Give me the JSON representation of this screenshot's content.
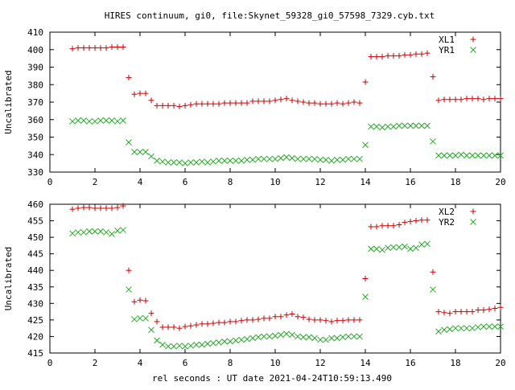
{
  "title": "HIRES continuum, gi0, file:Skynet_59328_gi0_57598_7329.cyb.txt",
  "xlabel": "rel seconds : UT date 2021-04-24T10:59:13.490",
  "colors": {
    "series_a": "#cc0000",
    "series_b": "#22aa22",
    "frame": "#000000"
  },
  "chart_data": [
    {
      "type": "scatter",
      "ylabel": "Uncalibrated",
      "xlim": [
        0,
        20
      ],
      "ylim": [
        330,
        410
      ],
      "xticks": [
        "0",
        "2",
        "4",
        "6",
        "8",
        "10",
        "12",
        "14",
        "16",
        "18",
        "20"
      ],
      "yticks": [
        "330",
        "340",
        "350",
        "360",
        "370",
        "380",
        "390",
        "400",
        "410"
      ],
      "legend_position": "top-right",
      "grid": false,
      "series": [
        {
          "name": "XL1",
          "marker": "plus",
          "x": [
            1.0,
            1.25,
            1.5,
            1.75,
            2.0,
            2.25,
            2.5,
            2.75,
            3.0,
            3.25,
            3.5,
            3.75,
            4.0,
            4.25,
            4.5,
            4.75,
            5.0,
            5.25,
            5.5,
            5.75,
            6.0,
            6.25,
            6.5,
            6.75,
            7.0,
            7.25,
            7.5,
            7.75,
            8.0,
            8.25,
            8.5,
            8.75,
            9.0,
            9.25,
            9.5,
            9.75,
            10.0,
            10.25,
            10.5,
            10.75,
            11.0,
            11.25,
            11.5,
            11.75,
            12.0,
            12.25,
            12.5,
            12.75,
            13.0,
            13.25,
            13.5,
            13.75,
            14.0,
            14.25,
            14.5,
            14.75,
            15.0,
            15.25,
            15.5,
            15.75,
            16.0,
            16.25,
            16.5,
            16.75,
            17.0,
            17.25,
            17.5,
            17.75,
            18.0,
            18.25,
            18.5,
            18.75,
            19.0,
            19.25,
            19.5,
            19.75,
            20.0
          ],
          "y": [
            400.5,
            401,
            401,
            401,
            401,
            401,
            401,
            401.5,
            401.5,
            401.5,
            384,
            374.5,
            375,
            375,
            371,
            368,
            368,
            368,
            368,
            367.5,
            368,
            368.5,
            369,
            369,
            369,
            369,
            369,
            369.5,
            369.5,
            369.5,
            369.5,
            369.5,
            370.5,
            370.5,
            370.5,
            370.5,
            371,
            371.5,
            372,
            371,
            370.5,
            370,
            369.5,
            369.5,
            369,
            369,
            369,
            369.5,
            369,
            369.5,
            370,
            369.5,
            381.5,
            396,
            396,
            396,
            396.5,
            396.5,
            396.5,
            397,
            397,
            397.5,
            397.5,
            398,
            384.5,
            371,
            371.5,
            371.5,
            371.5,
            371.5,
            372,
            372,
            372,
            371.5,
            372,
            372,
            372
          ]
        },
        {
          "name": "YR1",
          "marker": "cross",
          "x": [
            1.0,
            1.25,
            1.5,
            1.75,
            2.0,
            2.25,
            2.5,
            2.75,
            3.0,
            3.25,
            3.5,
            3.75,
            4.0,
            4.25,
            4.5,
            4.75,
            5.0,
            5.25,
            5.5,
            5.75,
            6.0,
            6.25,
            6.5,
            6.75,
            7.0,
            7.25,
            7.5,
            7.75,
            8.0,
            8.25,
            8.5,
            8.75,
            9.0,
            9.25,
            9.5,
            9.75,
            10.0,
            10.25,
            10.5,
            10.75,
            11.0,
            11.25,
            11.5,
            11.75,
            12.0,
            12.25,
            12.5,
            12.75,
            13.0,
            13.25,
            13.5,
            13.75,
            14.0,
            14.25,
            14.5,
            14.75,
            15.0,
            15.25,
            15.5,
            15.75,
            16.0,
            16.25,
            16.5,
            16.75,
            17.0,
            17.25,
            17.5,
            17.75,
            18.0,
            18.25,
            18.5,
            18.75,
            19.0,
            19.25,
            19.5,
            19.75,
            20.0
          ],
          "y": [
            359,
            359.5,
            359.5,
            359,
            359,
            359.5,
            359.5,
            359.5,
            359,
            359.5,
            347,
            341.5,
            341.5,
            341.5,
            339,
            336.5,
            336,
            335.5,
            335.5,
            335.5,
            335,
            335.5,
            335.5,
            336,
            335.5,
            336,
            336.5,
            336.5,
            336.5,
            336.5,
            336.5,
            337,
            337,
            337.5,
            337.5,
            337.5,
            337.5,
            338,
            338.5,
            338,
            337.5,
            337.5,
            337.5,
            337.5,
            337,
            337,
            336.5,
            337,
            337,
            337.5,
            337.5,
            337.5,
            345.5,
            356,
            356,
            355.5,
            356,
            356,
            356.5,
            356.5,
            356.5,
            356.5,
            356.5,
            356.5,
            347.5,
            339.5,
            339.5,
            339.5,
            339.5,
            340,
            339.5,
            339.5,
            339.5,
            339.5,
            339.5,
            339.5,
            339.5
          ]
        }
      ]
    },
    {
      "type": "scatter",
      "ylabel": "Uncalibrated",
      "xlim": [
        0,
        20
      ],
      "ylim": [
        415,
        460
      ],
      "xticks": [
        "0",
        "2",
        "4",
        "6",
        "8",
        "10",
        "12",
        "14",
        "16",
        "18",
        "20"
      ],
      "yticks": [
        "415",
        "420",
        "425",
        "430",
        "435",
        "440",
        "445",
        "450",
        "455",
        "460"
      ],
      "legend_position": "top-right",
      "grid": false,
      "series": [
        {
          "name": "XL2",
          "marker": "plus",
          "x": [
            1.0,
            1.25,
            1.5,
            1.75,
            2.0,
            2.25,
            2.5,
            2.75,
            3.0,
            3.25,
            3.5,
            3.75,
            4.0,
            4.25,
            4.5,
            4.75,
            5.0,
            5.25,
            5.5,
            5.75,
            6.0,
            6.25,
            6.5,
            6.75,
            7.0,
            7.25,
            7.5,
            7.75,
            8.0,
            8.25,
            8.5,
            8.75,
            9.0,
            9.25,
            9.5,
            9.75,
            10.0,
            10.25,
            10.5,
            10.75,
            11.0,
            11.25,
            11.5,
            11.75,
            12.0,
            12.25,
            12.5,
            12.75,
            13.0,
            13.25,
            13.5,
            13.75,
            14.0,
            14.25,
            14.5,
            14.75,
            15.0,
            15.25,
            15.5,
            15.75,
            16.0,
            16.25,
            16.5,
            16.75,
            17.0,
            17.25,
            17.5,
            17.75,
            18.0,
            18.25,
            18.5,
            18.75,
            19.0,
            19.25,
            19.5,
            19.75,
            20.0
          ],
          "y": [
            458.5,
            458.8,
            459,
            459,
            458.8,
            458.8,
            458.8,
            458.8,
            459,
            459.5,
            440,
            430.5,
            431,
            430.8,
            427,
            424.5,
            422.8,
            422.8,
            422.8,
            422.5,
            423,
            423.2,
            423.5,
            423.8,
            423.8,
            424,
            424.2,
            424.2,
            424.5,
            424.5,
            424.8,
            425,
            425,
            425.2,
            425.5,
            425.5,
            426,
            426,
            426.5,
            426.8,
            426,
            425.8,
            425.2,
            425,
            425,
            424.8,
            424.5,
            424.8,
            424.8,
            425,
            425,
            425,
            437.5,
            453.2,
            453.2,
            453.5,
            453.5,
            453.5,
            453.8,
            454.5,
            454.8,
            455,
            455.2,
            455.2,
            439.5,
            427.5,
            427.2,
            427,
            427.5,
            427.5,
            427.5,
            427.5,
            428,
            428,
            428.2,
            428.5,
            428.8
          ]
        },
        {
          "name": "YR2",
          "marker": "cross",
          "x": [
            1.0,
            1.25,
            1.5,
            1.75,
            2.0,
            2.25,
            2.5,
            2.75,
            3.0,
            3.25,
            3.5,
            3.75,
            4.0,
            4.25,
            4.5,
            4.75,
            5.0,
            5.25,
            5.5,
            5.75,
            6.0,
            6.25,
            6.5,
            6.75,
            7.0,
            7.25,
            7.5,
            7.75,
            8.0,
            8.25,
            8.5,
            8.75,
            9.0,
            9.25,
            9.5,
            9.75,
            10.0,
            10.25,
            10.5,
            10.75,
            11.0,
            11.25,
            11.5,
            11.75,
            12.0,
            12.25,
            12.5,
            12.75,
            13.0,
            13.25,
            13.5,
            13.75,
            14.0,
            14.25,
            14.5,
            14.75,
            15.0,
            15.25,
            15.5,
            15.75,
            16.0,
            16.25,
            16.5,
            16.75,
            17.0,
            17.25,
            17.5,
            17.75,
            18.0,
            18.25,
            18.5,
            18.75,
            19.0,
            19.25,
            19.5,
            19.75,
            20.0
          ],
          "y": [
            451.2,
            451.5,
            451.5,
            451.8,
            451.8,
            451.8,
            451.5,
            451,
            452,
            452.2,
            434.2,
            425.2,
            425.5,
            425.5,
            422,
            418.8,
            417.5,
            417,
            417,
            417.2,
            417,
            417.2,
            417.5,
            417.5,
            417.8,
            418,
            418.2,
            418.5,
            418.5,
            418.8,
            419,
            419.2,
            419.5,
            419.8,
            420,
            420,
            420.2,
            420.5,
            420.8,
            420.5,
            420,
            419.8,
            419.8,
            419.5,
            419,
            419,
            419.5,
            419.5,
            419.8,
            420,
            420,
            420,
            432,
            446.5,
            446.5,
            446.2,
            446.8,
            447,
            447,
            447.2,
            446.5,
            446.8,
            447.8,
            448,
            434.2,
            421.5,
            422,
            422.2,
            422.5,
            422.5,
            422.5,
            422.5,
            422.8,
            423,
            423,
            423,
            423
          ]
        }
      ]
    }
  ]
}
